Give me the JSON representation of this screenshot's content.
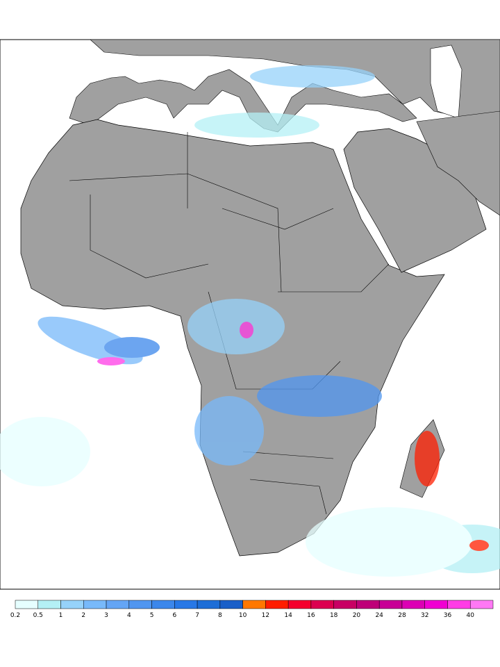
{
  "legend": {
    "levels": [
      0.2,
      0.5,
      1,
      2,
      3,
      4,
      5,
      6,
      7,
      8,
      10,
      12,
      14,
      16,
      18,
      20,
      24,
      28,
      32,
      36,
      40
    ],
    "colors": [
      "#e6ffff",
      "#b4f0f5",
      "#96d2fa",
      "#78b9fa",
      "#64a5f5",
      "#5096f0",
      "#3c87eb",
      "#2878e6",
      "#1e6ed7",
      "#1a5fc8",
      "#ff7800",
      "#ff1e00",
      "#f5002d",
      "#dc0050",
      "#c80064",
      "#be0078",
      "#c80096",
      "#dc00b4",
      "#f000d2",
      "#ff3ce6",
      "#ff78f5"
    ]
  }
}
